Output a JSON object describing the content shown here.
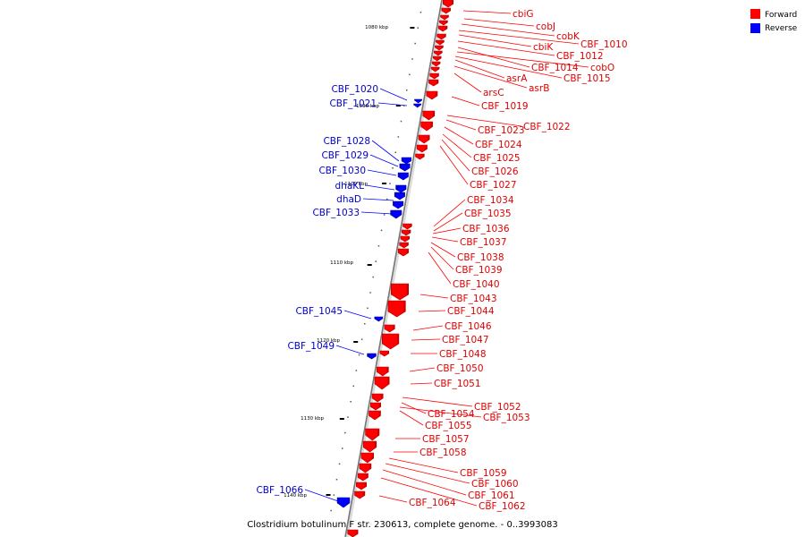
{
  "legend": [
    {
      "label": "Forward",
      "color": "#ff0000"
    },
    {
      "label": "Reverse",
      "color": "#0000ff"
    }
  ],
  "caption": "Clostridium botulinum F str. 230613, complete genome. - 0..3993083",
  "ticks": [
    "1080 kbp",
    "1090 kbp",
    "1100 kbp",
    "1110 kbp",
    "1120 kbp",
    "1130 kbp",
    "1140 kbp"
  ],
  "forward_genes": [
    "cbiG",
    "cobJ",
    "cobK",
    "CBF_1010",
    "cbiK",
    "CBF_1012",
    "CBF_1014",
    "cobO",
    "CBF_1015",
    "asrA",
    "asrB",
    "arsC",
    "CBF_1019",
    "CBF_1022",
    "CBF_1023",
    "CBF_1024",
    "CBF_1025",
    "CBF_1026",
    "CBF_1027",
    "CBF_1034",
    "CBF_1035",
    "CBF_1036",
    "CBF_1037",
    "CBF_1038",
    "CBF_1039",
    "CBF_1040",
    "CBF_1043",
    "CBF_1044",
    "CBF_1046",
    "CBF_1047",
    "CBF_1048",
    "CBF_1050",
    "CBF_1051",
    "CBF_1052",
    "CBF_1054",
    "CBF_1053",
    "CBF_1055",
    "CBF_1057",
    "CBF_1058",
    "CBF_1059",
    "CBF_1060",
    "CBF_1061",
    "CBF_1062",
    "CBF_1064"
  ],
  "reverse_genes": [
    "CBF_1020",
    "CBF_1021",
    "CBF_1028",
    "CBF_1029",
    "CBF_1030",
    "dhaKL",
    "dhaD",
    "CBF_1033",
    "CBF_1045",
    "CBF_1049",
    "CBF_1066"
  ]
}
